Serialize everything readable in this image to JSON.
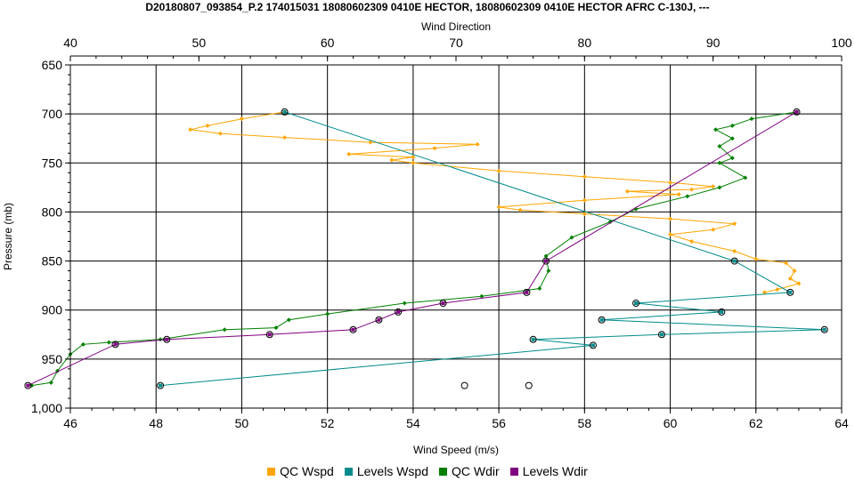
{
  "chart_data": {
    "type": "scatter",
    "title": "D20180807_093854_P.2 174015031 18080602309 0410E HECTOR, 18080602309 0410E HECTOR AFRC C-130J, ---",
    "top_axis": {
      "label": "Wind Direction",
      "range": [
        40,
        100
      ],
      "ticks": [
        40,
        50,
        60,
        70,
        80,
        90,
        100
      ]
    },
    "bottom_axis": {
      "label": "Wind Speed (m/s)",
      "range": [
        46,
        64
      ],
      "ticks": [
        46,
        48,
        50,
        52,
        54,
        56,
        58,
        60,
        62,
        64
      ]
    },
    "y_axis": {
      "label": "Pressure (mb)",
      "range": [
        650,
        1000
      ],
      "inverted": true,
      "ticks": [
        "650",
        "700",
        "750",
        "800",
        "850",
        "900",
        "950",
        "1,000"
      ]
    },
    "grid": true,
    "legend_position": "bottom",
    "series": [
      {
        "name": "QC Wspd",
        "color": "#ffa500",
        "axis": "bottom",
        "points": [
          [
            51.0,
            698
          ],
          [
            50.0,
            705
          ],
          [
            49.2,
            712
          ],
          [
            48.8,
            716
          ],
          [
            49.5,
            720
          ],
          [
            51.0,
            724
          ],
          [
            53.0,
            729
          ],
          [
            55.5,
            731
          ],
          [
            54.5,
            735
          ],
          [
            52.5,
            741
          ],
          [
            54.0,
            744
          ],
          [
            53.5,
            747
          ],
          [
            54.0,
            750
          ],
          [
            56.0,
            758
          ],
          [
            58.0,
            764
          ],
          [
            60.0,
            770
          ],
          [
            61.0,
            774
          ],
          [
            60.5,
            777
          ],
          [
            59.0,
            779
          ],
          [
            60.2,
            782
          ],
          [
            58.0,
            788
          ],
          [
            56.0,
            795
          ],
          [
            56.5,
            798
          ],
          [
            58.0,
            802
          ],
          [
            60.0,
            807
          ],
          [
            61.5,
            812
          ],
          [
            61.0,
            818
          ],
          [
            60.0,
            823
          ],
          [
            60.5,
            830
          ],
          [
            61.5,
            840
          ],
          [
            62.0,
            848
          ],
          [
            62.7,
            852
          ],
          [
            62.9,
            860
          ],
          [
            62.8,
            868
          ],
          [
            63.0,
            873
          ],
          [
            62.5,
            879
          ],
          [
            62.2,
            882
          ]
        ]
      },
      {
        "name": "Levels Wspd",
        "color": "#008b8b",
        "axis": "bottom",
        "points": [
          [
            51.0,
            698
          ],
          [
            61.5,
            850
          ],
          [
            62.8,
            882
          ],
          [
            59.2,
            893
          ],
          [
            61.2,
            902
          ],
          [
            58.4,
            910
          ],
          [
            63.6,
            920
          ],
          [
            59.8,
            925
          ],
          [
            56.8,
            930
          ],
          [
            58.2,
            936
          ],
          [
            48.1,
            977
          ]
        ]
      },
      {
        "name": "QC Wdir",
        "color": "#008000",
        "axis": "top",
        "points": [
          [
            96.5,
            698
          ],
          [
            93.0,
            705
          ],
          [
            91.5,
            712
          ],
          [
            90.2,
            716
          ],
          [
            91.5,
            725
          ],
          [
            90.5,
            733
          ],
          [
            91.5,
            745
          ],
          [
            90.5,
            750
          ],
          [
            92.5,
            765
          ],
          [
            90.5,
            775
          ],
          [
            88.0,
            784
          ],
          [
            84.0,
            797
          ],
          [
            82.0,
            810
          ],
          [
            79.0,
            826
          ],
          [
            77.0,
            845
          ],
          [
            77.2,
            860
          ],
          [
            76.5,
            878
          ],
          [
            72.0,
            886
          ],
          [
            66.0,
            893
          ],
          [
            60.0,
            904
          ],
          [
            57.0,
            910
          ],
          [
            56.0,
            918
          ],
          [
            52.0,
            920
          ],
          [
            47.0,
            930
          ],
          [
            43.0,
            933
          ],
          [
            41.0,
            935
          ],
          [
            40.0,
            945
          ],
          [
            39.0,
            962
          ],
          [
            38.5,
            974
          ],
          [
            37.0,
            977
          ]
        ]
      },
      {
        "name": "Levels Wdir",
        "color": "#800080",
        "axis": "top",
        "points": [
          [
            96.5,
            698
          ],
          [
            77.0,
            850
          ],
          [
            75.5,
            882
          ],
          [
            69.0,
            893
          ],
          [
            65.5,
            902
          ],
          [
            64.0,
            910
          ],
          [
            62.0,
            920
          ],
          [
            55.5,
            925
          ],
          [
            47.5,
            930
          ],
          [
            43.5,
            935
          ],
          [
            36.7,
            977
          ]
        ]
      }
    ],
    "extra_markers": [
      [
        55.2,
        977
      ],
      [
        56.7,
        977
      ]
    ]
  },
  "legend": [
    {
      "label": "QC Wspd",
      "color": "#ffa500"
    },
    {
      "label": "Levels Wspd",
      "color": "#008b8b"
    },
    {
      "label": "QC Wdir",
      "color": "#008000"
    },
    {
      "label": "Levels Wdir",
      "color": "#800080"
    }
  ]
}
